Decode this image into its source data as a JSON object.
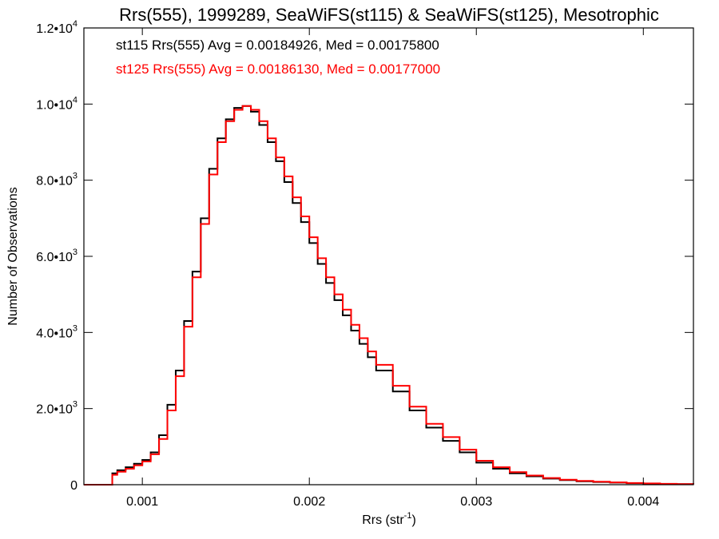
{
  "chart_data": {
    "type": "line",
    "title": "Rrs(555), 1999289, SeaWiFS(st115) & SeaWiFS(st125), Mesotrophic",
    "xlabel": "Rrs (str",
    "xlabel_sup": "-1",
    "xlabel_end": ")",
    "ylabel": "Number of Observations",
    "xlim": [
      0.00065,
      0.0043
    ],
    "ylim": [
      0,
      12000
    ],
    "x_ticks": [
      {
        "value": 0.001,
        "label": "0.001"
      },
      {
        "value": 0.002,
        "label": "0.002"
      },
      {
        "value": 0.003,
        "label": "0.003"
      },
      {
        "value": 0.004,
        "label": "0.004"
      }
    ],
    "y_ticks": [
      {
        "value": 0,
        "mant": "0",
        "exp": ""
      },
      {
        "value": 2000,
        "mant": "2.0•10",
        "exp": "3"
      },
      {
        "value": 4000,
        "mant": "4.0•10",
        "exp": "3"
      },
      {
        "value": 6000,
        "mant": "6.0•10",
        "exp": "3"
      },
      {
        "value": 8000,
        "mant": "8.0•10",
        "exp": "3"
      },
      {
        "value": 10000,
        "mant": "1.0•10",
        "exp": "4"
      },
      {
        "value": 12000,
        "mant": "1.2•10",
        "exp": "4"
      }
    ],
    "grid": false,
    "annotations": [
      {
        "text": "st115 Rrs(555) Avg = 0.00184926, Med = 0.00175800",
        "color": "#000000"
      },
      {
        "text": "st125 Rrs(555) Avg = 0.00186130, Med = 0.00177000",
        "color": "#ff0000"
      }
    ],
    "series": [
      {
        "color": "#000000",
        "x": [
          0.00065,
          0.0008,
          0.00082,
          0.00085,
          0.0009,
          0.00095,
          0.001,
          0.00105,
          0.0011,
          0.00115,
          0.0012,
          0.00125,
          0.0013,
          0.00135,
          0.0014,
          0.00145,
          0.0015,
          0.00155,
          0.0016,
          0.00165,
          0.0017,
          0.00175,
          0.0018,
          0.00185,
          0.0019,
          0.00195,
          0.002,
          0.00205,
          0.0021,
          0.00215,
          0.0022,
          0.00225,
          0.0023,
          0.00235,
          0.0024,
          0.0025,
          0.0026,
          0.0027,
          0.0028,
          0.0029,
          0.003,
          0.0031,
          0.0032,
          0.0033,
          0.0034,
          0.0035,
          0.0036,
          0.0037,
          0.0038,
          0.0039,
          0.004,
          0.0041,
          0.0042,
          0.0043
        ],
        "values": [
          0,
          0,
          300,
          380,
          460,
          550,
          650,
          850,
          1300,
          2100,
          3000,
          4300,
          5600,
          7000,
          8300,
          9100,
          9600,
          9900,
          9950,
          9800,
          9450,
          9000,
          8500,
          7950,
          7400,
          6900,
          6350,
          5800,
          5300,
          4850,
          4450,
          4050,
          3700,
          3350,
          3000,
          2450,
          1950,
          1500,
          1150,
          850,
          580,
          420,
          300,
          220,
          160,
          120,
          90,
          70,
          55,
          40,
          30,
          20,
          15,
          10
        ]
      },
      {
        "color": "#ff0000",
        "x": [
          0.00065,
          0.0008,
          0.00082,
          0.00085,
          0.0009,
          0.00095,
          0.001,
          0.00105,
          0.0011,
          0.00115,
          0.0012,
          0.00125,
          0.0013,
          0.00135,
          0.0014,
          0.00145,
          0.0015,
          0.00155,
          0.0016,
          0.00165,
          0.0017,
          0.00175,
          0.0018,
          0.00185,
          0.0019,
          0.00195,
          0.002,
          0.00205,
          0.0021,
          0.00215,
          0.0022,
          0.00225,
          0.0023,
          0.00235,
          0.0024,
          0.0025,
          0.0026,
          0.0027,
          0.0028,
          0.0029,
          0.003,
          0.0031,
          0.0032,
          0.0033,
          0.0034,
          0.0035,
          0.0036,
          0.0037,
          0.0038,
          0.0039,
          0.004,
          0.0041,
          0.0042,
          0.0043
        ],
        "values": [
          0,
          0,
          260,
          340,
          420,
          510,
          610,
          800,
          1200,
          1950,
          2850,
          4150,
          5450,
          6850,
          8150,
          9000,
          9550,
          9850,
          9950,
          9850,
          9550,
          9100,
          8600,
          8100,
          7550,
          7050,
          6500,
          5950,
          5450,
          5000,
          4600,
          4200,
          3850,
          3500,
          3150,
          2600,
          2050,
          1600,
          1250,
          920,
          630,
          460,
          330,
          240,
          175,
          130,
          100,
          78,
          60,
          45,
          33,
          23,
          17,
          12
        ]
      }
    ]
  }
}
